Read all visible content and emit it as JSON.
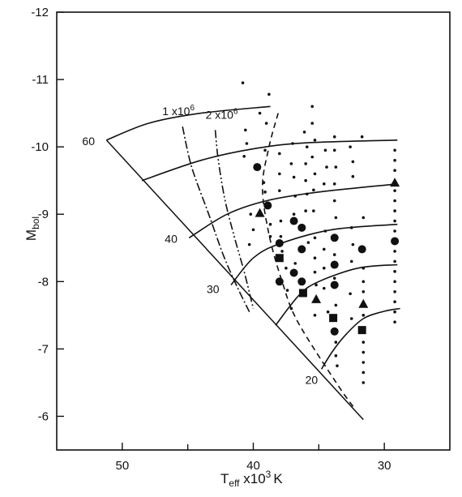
{
  "chart_data": {
    "type": "scatter",
    "title": "",
    "xlabel_main": "T",
    "xlabel_sub": "eff",
    "xlabel_rest": " x10",
    "xlabel_sup": "3",
    "xlabel_unit": "K",
    "ylabel_main": "M",
    "ylabel_sub": "bol",
    "xlim": [
      55,
      25
    ],
    "ylim": [
      -5.5,
      -12
    ],
    "x_ticks": [
      50,
      40,
      30
    ],
    "x_tick_labels": [
      "50",
      "40",
      "30"
    ],
    "x_minor_ticks": [
      45,
      35
    ],
    "y_ticks": [
      -6,
      -7,
      -8,
      -9,
      -10,
      -11,
      -12
    ],
    "y_tick_labels": [
      "-6",
      "-7",
      "-8",
      "-9",
      "-10",
      "-11",
      "-12"
    ],
    "zams": [
      [
        51.2,
        -10.1
      ],
      [
        31.6,
        -5.95
      ]
    ],
    "tracks": [
      {
        "name": "60",
        "points": [
          [
            51.2,
            -10.1
          ],
          [
            48,
            -10.35
          ],
          [
            44,
            -10.5
          ],
          [
            38.7,
            -10.6
          ]
        ]
      },
      {
        "name": "",
        "points": [
          [
            48.5,
            -9.5
          ],
          [
            44,
            -9.8
          ],
          [
            40,
            -9.97
          ],
          [
            36,
            -10.06
          ],
          [
            29,
            -10.1
          ]
        ]
      },
      {
        "name": "40",
        "points": [
          [
            44.9,
            -8.65
          ],
          [
            42,
            -9.0
          ],
          [
            39,
            -9.2
          ],
          [
            35,
            -9.33
          ],
          [
            29,
            -9.45
          ]
        ]
      },
      {
        "name": "30",
        "points": [
          [
            41.7,
            -7.95
          ],
          [
            40,
            -8.35
          ],
          [
            38,
            -8.56
          ],
          [
            34,
            -8.77
          ],
          [
            29,
            -8.85
          ]
        ]
      },
      {
        "name": "",
        "points": [
          [
            38.3,
            -7.35
          ],
          [
            36.5,
            -7.8
          ],
          [
            35,
            -8.0
          ],
          [
            32,
            -8.2
          ],
          [
            29,
            -8.25
          ]
        ]
      },
      {
        "name": "20",
        "points": [
          [
            34.8,
            -6.7
          ],
          [
            34,
            -6.95
          ],
          [
            33,
            -7.2
          ],
          [
            31.6,
            -7.45
          ],
          [
            30,
            -7.56
          ],
          [
            28.8,
            -7.6
          ]
        ]
      }
    ],
    "isochrones": [
      {
        "name": "1 x10",
        "sup": "6",
        "style": "dash-dot",
        "points": [
          [
            45.4,
            -10.3
          ],
          [
            44.7,
            -9.7
          ],
          [
            43.4,
            -9.0
          ],
          [
            42.3,
            -8.4
          ],
          [
            41.3,
            -7.95
          ],
          [
            40.3,
            -7.55
          ]
        ]
      },
      {
        "name": "2 x10",
        "sup": "6",
        "style": "dash-dot-dot",
        "points": [
          [
            42.9,
            -10.25
          ],
          [
            42.7,
            -9.85
          ],
          [
            42.2,
            -9.25
          ],
          [
            41.5,
            -8.7
          ],
          [
            40.7,
            -8.15
          ],
          [
            40.0,
            -7.6
          ]
        ]
      },
      {
        "name": "",
        "style": "dashed",
        "points": [
          [
            38.1,
            -10.5
          ],
          [
            38.8,
            -10.0
          ],
          [
            39.3,
            -9.4
          ],
          [
            38.8,
            -8.7
          ],
          [
            37.8,
            -8.0
          ],
          [
            36.6,
            -7.4
          ],
          [
            33.5,
            -6.45
          ],
          [
            32.2,
            -6.1
          ]
        ]
      }
    ],
    "series": [
      {
        "name": "",
        "marker": "circle",
        "points": [
          [
            39.7,
            -9.7
          ],
          [
            38.9,
            -9.13
          ],
          [
            38.0,
            -8.57
          ],
          [
            38.0,
            -8.0
          ],
          [
            36.9,
            -8.9
          ],
          [
            36.3,
            -8.8
          ],
          [
            36.3,
            -8.48
          ],
          [
            36.9,
            -8.13
          ],
          [
            36.3,
            -8.0
          ],
          [
            33.8,
            -8.65
          ],
          [
            33.8,
            -8.25
          ],
          [
            33.8,
            -7.95
          ],
          [
            33.8,
            -7.26
          ],
          [
            31.7,
            -8.48
          ],
          [
            29.2,
            -8.6
          ]
        ]
      },
      {
        "name": "",
        "marker": "square",
        "points": [
          [
            38.0,
            -8.35
          ],
          [
            36.2,
            -7.83
          ],
          [
            33.9,
            -7.46
          ],
          [
            31.7,
            -7.28
          ]
        ]
      },
      {
        "name": "",
        "marker": "triangle",
        "points": [
          [
            39.5,
            -9.02
          ],
          [
            35.2,
            -7.74
          ],
          [
            31.6,
            -7.67
          ],
          [
            29.2,
            -9.47
          ]
        ]
      },
      {
        "name": "",
        "marker": "dot",
        "points": [
          [
            40.8,
            -10.95
          ],
          [
            38.8,
            -10.78
          ],
          [
            40.6,
            -10.25
          ],
          [
            40.5,
            -10.05
          ],
          [
            40.7,
            -9.86
          ],
          [
            40.2,
            -9.0
          ],
          [
            40.0,
            -8.77
          ],
          [
            40.3,
            -8.55
          ],
          [
            39.5,
            -10.5
          ],
          [
            39.0,
            -10.35
          ],
          [
            39.1,
            -9.95
          ],
          [
            39.2,
            -9.47
          ],
          [
            39.1,
            -9.33
          ],
          [
            38.9,
            -9.12
          ],
          [
            38.7,
            -8.85
          ],
          [
            38.7,
            -8.67
          ],
          [
            38.0,
            -9.9
          ],
          [
            38.0,
            -9.6
          ],
          [
            38.0,
            -9.35
          ],
          [
            37.9,
            -8.9
          ],
          [
            37.9,
            -8.67
          ],
          [
            37.8,
            -8.45
          ],
          [
            37.5,
            -8.2
          ],
          [
            37.4,
            -7.87
          ],
          [
            37.1,
            -7.6
          ],
          [
            37.0,
            -10.05
          ],
          [
            37.1,
            -9.75
          ],
          [
            36.9,
            -9.55
          ],
          [
            36.8,
            -9.27
          ],
          [
            36.9,
            -9.0
          ],
          [
            36.8,
            -8.27
          ],
          [
            36.1,
            -10.22
          ],
          [
            35.9,
            -10.0
          ],
          [
            36.0,
            -9.75
          ],
          [
            36.0,
            -9.5
          ],
          [
            35.9,
            -9.3
          ],
          [
            36.0,
            -9.05
          ],
          [
            35.8,
            -8.58
          ],
          [
            35.5,
            -10.6
          ],
          [
            35.5,
            -10.35
          ],
          [
            35.3,
            -10.1
          ],
          [
            35.5,
            -9.85
          ],
          [
            35.3,
            -9.6
          ],
          [
            35.4,
            -9.36
          ],
          [
            35.4,
            -9.05
          ],
          [
            35.3,
            -8.65
          ],
          [
            35.3,
            -8.35
          ],
          [
            35.3,
            -8.14
          ],
          [
            35.2,
            -7.95
          ],
          [
            35.3,
            -7.5
          ],
          [
            34.5,
            -9.95
          ],
          [
            34.4,
            -9.7
          ],
          [
            34.6,
            -9.45
          ],
          [
            34.5,
            -8.75
          ],
          [
            34.6,
            -8.48
          ],
          [
            34.6,
            -8.2
          ],
          [
            34.6,
            -7.9
          ],
          [
            34.3,
            -7.55
          ],
          [
            33.8,
            -10.15
          ],
          [
            33.8,
            -9.95
          ],
          [
            33.7,
            -9.7
          ],
          [
            33.8,
            -9.45
          ],
          [
            33.8,
            -9.2
          ],
          [
            33.7,
            -8.95
          ],
          [
            33.8,
            -8.4
          ],
          [
            33.8,
            -8.05
          ],
          [
            33.7,
            -7.65
          ],
          [
            33.7,
            -7.1
          ],
          [
            33.7,
            -6.9
          ],
          [
            33.6,
            -6.75
          ],
          [
            32.6,
            -10.0
          ],
          [
            32.4,
            -9.78
          ],
          [
            32.4,
            -9.56
          ],
          [
            32.5,
            -8.8
          ],
          [
            32.4,
            -8.55
          ],
          [
            32.5,
            -8.3
          ],
          [
            32.6,
            -7.82
          ],
          [
            32.5,
            -7.45
          ],
          [
            31.7,
            -10.15
          ],
          [
            31.6,
            -8.95
          ],
          [
            31.6,
            -8.2
          ],
          [
            31.6,
            -8.0
          ],
          [
            31.6,
            -7.85
          ],
          [
            31.6,
            -7.5
          ],
          [
            31.6,
            -7.1
          ],
          [
            31.6,
            -6.95
          ],
          [
            31.6,
            -6.8
          ],
          [
            31.6,
            -6.65
          ],
          [
            31.6,
            -6.5
          ],
          [
            29.2,
            -9.95
          ],
          [
            29.2,
            -9.8
          ],
          [
            29.2,
            -9.65
          ],
          [
            29.2,
            -9.35
          ],
          [
            29.2,
            -9.2
          ],
          [
            29.2,
            -9.05
          ],
          [
            29.2,
            -8.9
          ],
          [
            29.2,
            -8.75
          ],
          [
            29.2,
            -8.45
          ],
          [
            29.2,
            -8.3
          ],
          [
            29.2,
            -8.15
          ],
          [
            29.2,
            -8.0
          ],
          [
            29.2,
            -7.85
          ],
          [
            29.2,
            -7.7
          ],
          [
            29.2,
            -7.55
          ],
          [
            29.2,
            -7.4
          ]
        ]
      }
    ]
  }
}
